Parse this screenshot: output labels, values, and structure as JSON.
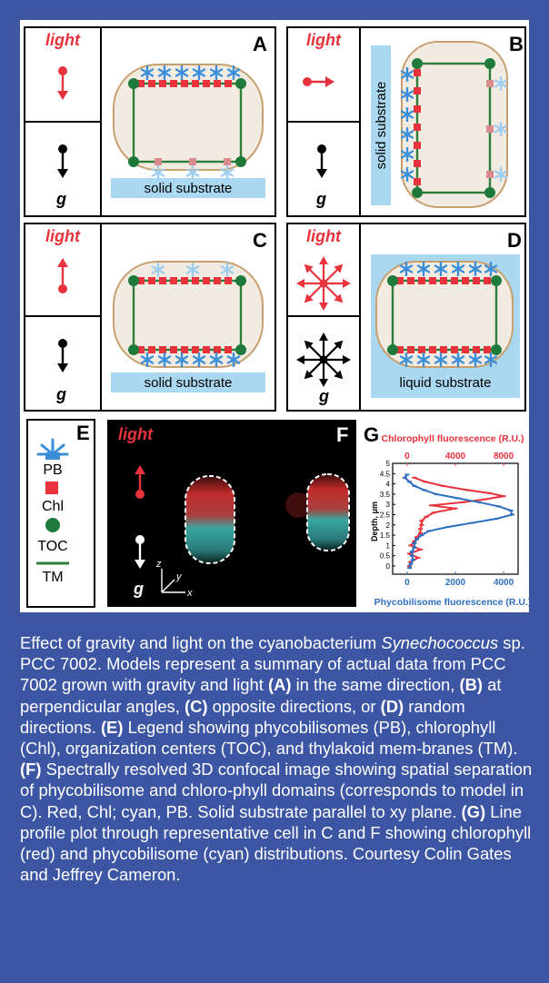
{
  "panels": {
    "A": {
      "letter": "A",
      "light": "light",
      "g": "g",
      "substrate": "solid substrate"
    },
    "B": {
      "letter": "B",
      "light": "light",
      "g": "g",
      "substrate": "solid substrate"
    },
    "C": {
      "letter": "C",
      "light": "light",
      "g": "g",
      "substrate": "solid substrate"
    },
    "D": {
      "letter": "D",
      "light": "light",
      "g": "g",
      "substrate": "liquid substrate"
    }
  },
  "legend": {
    "letter": "E",
    "items": [
      "PB",
      "Chl",
      "TOC",
      "TM"
    ]
  },
  "confocal": {
    "letter": "F",
    "light": "light",
    "g": "g",
    "axes": {
      "z": "z",
      "y": "y",
      "x": "x"
    }
  },
  "profile": {
    "letter": "G"
  },
  "chart_data": {
    "type": "line",
    "top_axis": {
      "label": "Chlorophyll fluorescence (R.U.)",
      "ticks": [
        "0",
        "4000",
        "8000"
      ]
    },
    "bottom_axis": {
      "label": "Phycobilisome fluorescence (R.U.)",
      "ticks": [
        "0",
        "2000",
        "4000"
      ]
    },
    "ylabel": "Depth, μm",
    "yticks": [
      "0",
      "0.5",
      "1",
      "1.5",
      "2",
      "2.5",
      "3",
      "3.5",
      "4",
      "4.5",
      "5"
    ],
    "ylim": [
      -0.4,
      5.0
    ],
    "top_xlim": [
      -1200,
      9200
    ],
    "bottom_xlim": [
      -600,
      4600
    ],
    "series": [
      {
        "color": "#e8323c",
        "axis": "top",
        "depth": [
          4.3,
          4.1,
          3.9,
          3.7,
          3.55,
          3.4,
          3.25,
          3.1,
          2.95,
          2.8,
          2.6,
          2.4,
          2.2,
          2.0,
          1.8,
          1.6,
          1.4,
          1.2,
          1.0,
          0.8,
          0.6,
          0.4,
          0.2,
          0.0
        ],
        "values": [
          600,
          1500,
          3000,
          5000,
          6800,
          8000,
          6500,
          4600,
          2000,
          4000,
          2200,
          1600,
          1200,
          1200,
          1100,
          1100,
          800,
          600,
          300,
          1100,
          200,
          900,
          300,
          200
        ]
      },
      {
        "color": "#2f6fc0",
        "axis": "bottom",
        "depth": [
          4.45,
          4.3,
          4.1,
          3.9,
          3.7,
          3.5,
          3.3,
          3.1,
          2.9,
          2.7,
          2.5,
          2.3,
          2.1,
          1.9,
          1.7,
          1.5,
          1.3,
          1.1,
          0.9,
          0.7,
          0.5,
          0.3,
          0.1,
          -0.1
        ],
        "values": [
          0,
          -100,
          100,
          300,
          700,
          1200,
          2100,
          3000,
          3800,
          4300,
          4350,
          3700,
          2700,
          1700,
          900,
          600,
          400,
          300,
          300,
          200,
          200,
          250,
          150,
          100
        ]
      }
    ]
  },
  "caption": {
    "s1": "Effect of gravity and light on the cyanobacterium ",
    "s1i": "Synechococcus",
    "s2": " sp. PCC 7002. Models represent a summary of actual data from PCC 7002 grown with gravity and light ",
    "lA": "(A)",
    "tA": " in the same direction, ",
    "lB": "(B)",
    "tB": " at perpendicular angles, ",
    "lC": "(C)",
    "tC": " opposite directions, or ",
    "lD": "(D)",
    "tD": " random directions. ",
    "lE": "(E)",
    "tE": " Legend showing phycobilisomes (PB), chlorophyll (Chl), organization centers (TOC), and thylakoid mem-branes (TM). ",
    "lF": "(F)",
    "tF": " Spectrally resolved 3D confocal image showing spatial separation of phycobilisome and chloro-phyll domains (corresponds to model in C). Red, Chl; cyan, PB. Solid substrate parallel to xy plane. ",
    "lG": "(G)",
    "tG": " Line profile plot through representative cell in C and F showing chlorophyll (red) and phycobilisome (cyan) distributions. Courtesy Colin Gates and Jeffrey Cameron."
  },
  "colors": {
    "light": "#e8323c",
    "pb": "#5aaee6",
    "chl": "#e8323c",
    "toc": "#1e7a3a",
    "tm": "#2e7d3a",
    "cell": "#f2ebe2",
    "cellBorder": "#c8a070",
    "substrate": "#a9d8f0",
    "panel": "#3d56a4"
  }
}
